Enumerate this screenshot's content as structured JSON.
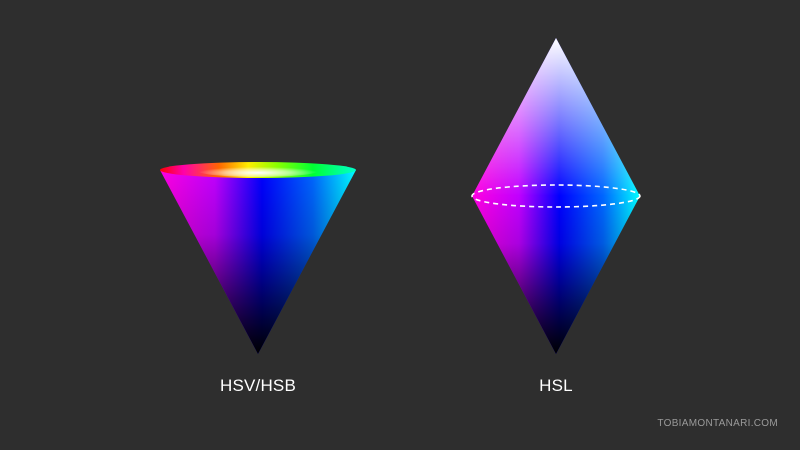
{
  "labels": {
    "hsv": "HSV/HSB",
    "hsl": "HSL"
  },
  "credit": "TOBIAMONTANARI.COM",
  "colors": {
    "background": "#2e2e2e",
    "label": "#ffffff",
    "credit": "#9a9a9a",
    "magenta": "#ff00ff",
    "blue": "#0000ff",
    "cyan": "#00ffff",
    "black": "#000000",
    "white": "#ffffff"
  }
}
